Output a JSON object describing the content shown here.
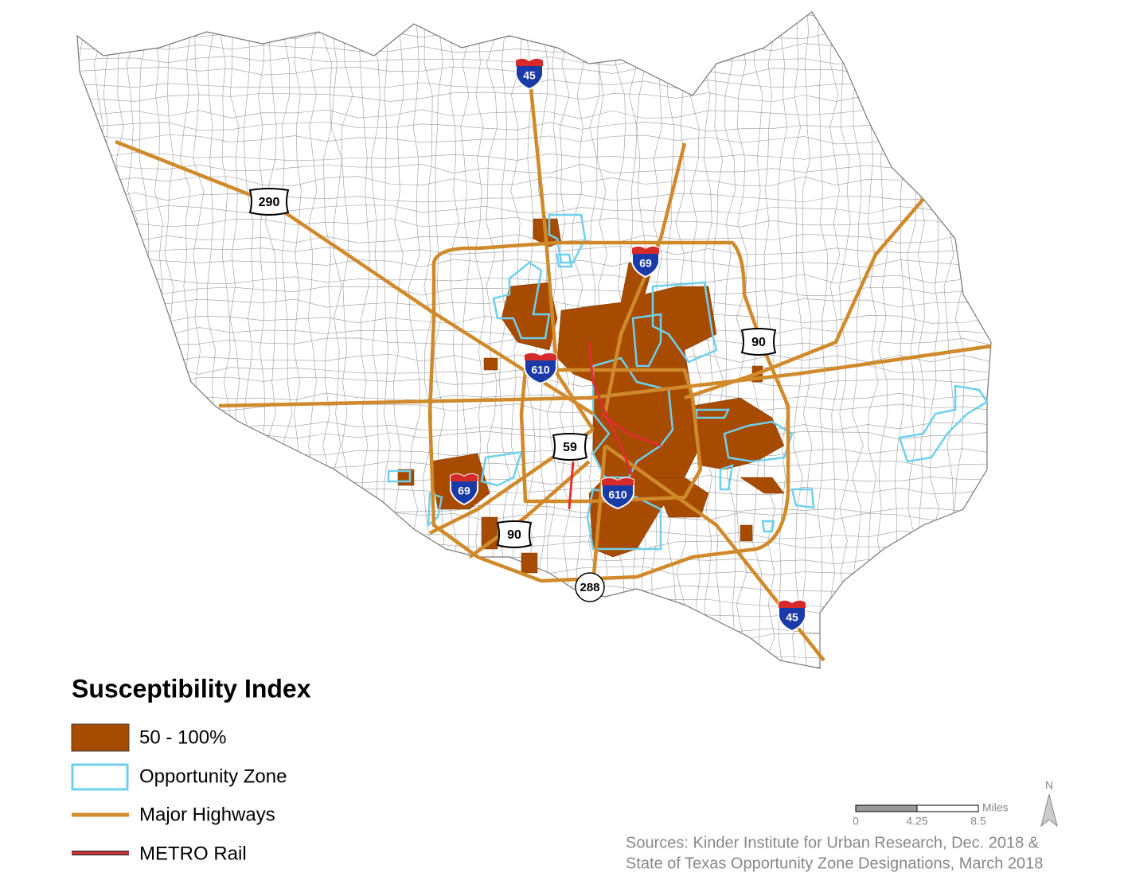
{
  "legend": {
    "title": "Susceptibility Index",
    "items": [
      "50 - 100%",
      "Opportunity Zone",
      "Major Highways",
      "METRO Rail"
    ]
  },
  "shields": [
    {
      "label": "45",
      "kind": "interstate"
    },
    {
      "label": "290",
      "kind": "us"
    },
    {
      "label": "69",
      "kind": "interstate"
    },
    {
      "label": "90",
      "kind": "us"
    },
    {
      "label": "610",
      "kind": "interstate"
    },
    {
      "label": "59",
      "kind": "us"
    },
    {
      "label": "69",
      "kind": "interstate"
    },
    {
      "label": "610",
      "kind": "interstate"
    },
    {
      "label": "90",
      "kind": "us"
    },
    {
      "label": "288",
      "kind": "state"
    },
    {
      "label": "45",
      "kind": "interstate"
    }
  ],
  "scale_bar": {
    "unit": "Miles",
    "ticks": [
      0,
      4.25,
      8.5
    ]
  },
  "north_arrow": "N",
  "sources": [
    "Sources: Kinder Institute for Urban Research, Dec. 2018 &",
    "State of Texas Opportunity Zone Designations, March 2018"
  ]
}
